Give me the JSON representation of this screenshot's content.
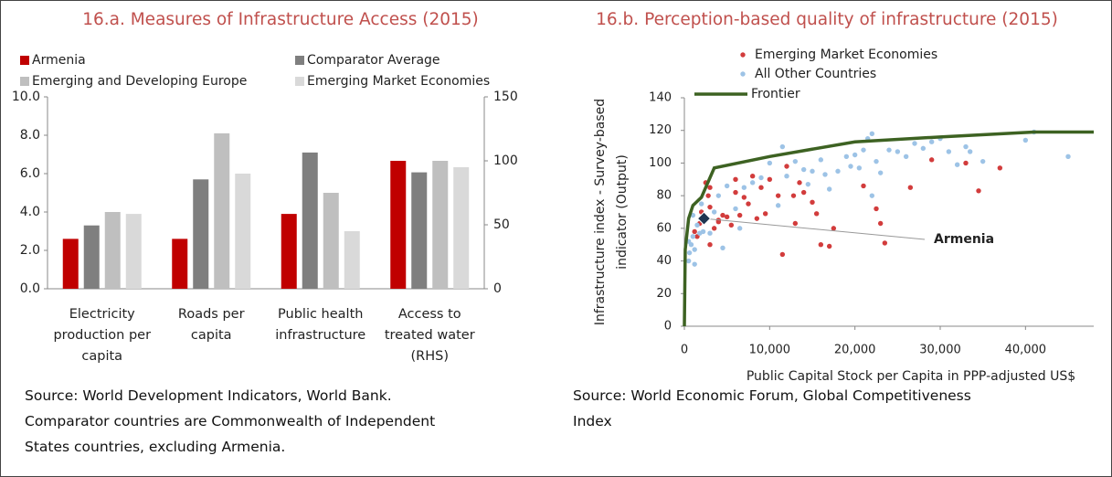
{
  "chart_data": [
    {
      "type": "bar",
      "title": "16.a. Measures of Infrastructure Access (2015)",
      "categories": [
        "Electricity production per capita",
        "Roads per capita",
        "Public health infrastructure",
        "Access to treated water (RHS)"
      ],
      "series": [
        {
          "name": "Armenia",
          "color": "#c00000",
          "values": [
            2.6,
            2.6,
            3.9,
            null
          ],
          "y2_values": [
            null,
            null,
            null,
            100
          ]
        },
        {
          "name": "Comparator Average",
          "color": "#7f7f7f",
          "values": [
            3.3,
            5.7,
            7.1,
            null
          ],
          "y2_values": [
            null,
            null,
            null,
            91
          ]
        },
        {
          "name": "Emerging and Developing Europe",
          "color": "#bfbfbf",
          "values": [
            4.0,
            8.1,
            5.0,
            null
          ],
          "y2_values": [
            null,
            null,
            null,
            100
          ]
        },
        {
          "name": "Emerging Market Economies",
          "color": "#d9d9d9",
          "values": [
            3.9,
            6.0,
            3.0,
            null
          ],
          "y2_values": [
            null,
            null,
            null,
            95
          ]
        }
      ],
      "ylim": [
        0,
        10
      ],
      "yticks": [
        {
          "value": 0,
          "label": "0.0"
        },
        {
          "value": 2,
          "label": "2.0"
        },
        {
          "value": 4,
          "label": "4.0"
        },
        {
          "value": 6,
          "label": "6.0"
        },
        {
          "value": 8,
          "label": "8.0"
        },
        {
          "value": 10,
          "label": "10.0"
        }
      ],
      "y2lim": [
        0,
        150
      ],
      "y2ticks": [
        0,
        50,
        100,
        150
      ],
      "source": [
        "Source: World Development Indicators, World Bank.",
        "Comparator countries are Commonwealth of Independent",
        "States countries, excluding Armenia."
      ]
    },
    {
      "type": "scatter",
      "title": "16.b. Perception-based quality of infrastructure (2015)",
      "xlabel": "Public Capital Stock per Capita in PPP-adjusted  US$",
      "ylabel": [
        "Infrastructure index - Survey-based",
        "indicator (Output)"
      ],
      "series": [
        {
          "name": "Emerging Market Economies",
          "color": "#d23c3c",
          "x": [
            11500,
            13000,
            12800,
            13500,
            15000,
            15500,
            16000,
            17000,
            17500,
            21000,
            23000,
            23500,
            26500,
            29000,
            33000,
            34500,
            37000,
            22500,
            14000,
            9000,
            10000,
            8000,
            7500,
            6000,
            5500,
            5000,
            4500,
            4000,
            3500,
            3000,
            2800,
            2500,
            2200,
            2000,
            1800,
            1500,
            1200,
            3000,
            4000,
            6500,
            7000,
            8500,
            9500,
            11000,
            12000,
            6000,
            3000
          ],
          "y": [
            44,
            63,
            80,
            88,
            76,
            69,
            50,
            49,
            60,
            86,
            63,
            51,
            85,
            102,
            100,
            83,
            97,
            72,
            82,
            85,
            90,
            92,
            75,
            82,
            62,
            67,
            68,
            64,
            60,
            73,
            80,
            88,
            66,
            70,
            63,
            55,
            58,
            50,
            65,
            68,
            79,
            66,
            69,
            80,
            98,
            90,
            85
          ]
        },
        {
          "name": "All Other Countries",
          "color": "#9dc3e6",
          "x": [
            500,
            600,
            800,
            1000,
            1200,
            1500,
            1800,
            2000,
            2200,
            2500,
            3000,
            3500,
            1000,
            4000,
            5000,
            6000,
            7000,
            8000,
            9000,
            11000,
            12000,
            14000,
            15000,
            16000,
            17000,
            18000,
            19000,
            20000,
            20500,
            21000,
            21500,
            22000,
            22000,
            22500,
            23000,
            24000,
            25000,
            26000,
            27000,
            28000,
            29000,
            30000,
            31000,
            32000,
            33000,
            33500,
            35000,
            40000,
            41000,
            45000,
            16500,
            19500,
            10000,
            11500,
            13000,
            14500,
            6500,
            4500,
            1200,
            500
          ],
          "y": [
            40,
            45,
            50,
            55,
            47,
            62,
            57,
            75,
            58,
            65,
            57,
            70,
            68,
            80,
            86,
            72,
            85,
            88,
            91,
            74,
            92,
            96,
            95,
            102,
            84,
            95,
            104,
            105,
            97,
            108,
            115,
            118,
            80,
            101,
            94,
            108,
            107,
            104,
            112,
            109,
            113,
            115,
            107,
            99,
            110,
            107,
            101,
            114,
            119,
            104,
            93,
            98,
            100,
            110,
            101,
            87,
            60,
            48,
            38,
            52
          ]
        }
      ],
      "frontier": {
        "name": "Frontier",
        "color": "#3d6222",
        "x": [
          0,
          100,
          500,
          1000,
          2000,
          3500,
          10000,
          20000,
          30000,
          41000,
          48000
        ],
        "y": [
          0,
          47,
          66,
          74,
          79,
          97,
          104,
          113,
          116,
          119,
          119
        ]
      },
      "annotation": {
        "text": "Armenia",
        "x": 2300,
        "y": 66
      },
      "xlim": [
        0,
        48000
      ],
      "xticks": [
        0,
        {
          "value": 10000,
          "label": "10,000"
        },
        {
          "value": 20000,
          "label": "20,000"
        },
        {
          "value": 30000,
          "label": "30,000"
        },
        {
          "value": 40000,
          "label": "40,000"
        }
      ],
      "ylim": [
        0,
        140
      ],
      "yticks": [
        0,
        20,
        40,
        60,
        80,
        100,
        120,
        140
      ],
      "source": [
        "Source: World Economic Forum, Global Competitiveness",
        "Index"
      ]
    }
  ]
}
